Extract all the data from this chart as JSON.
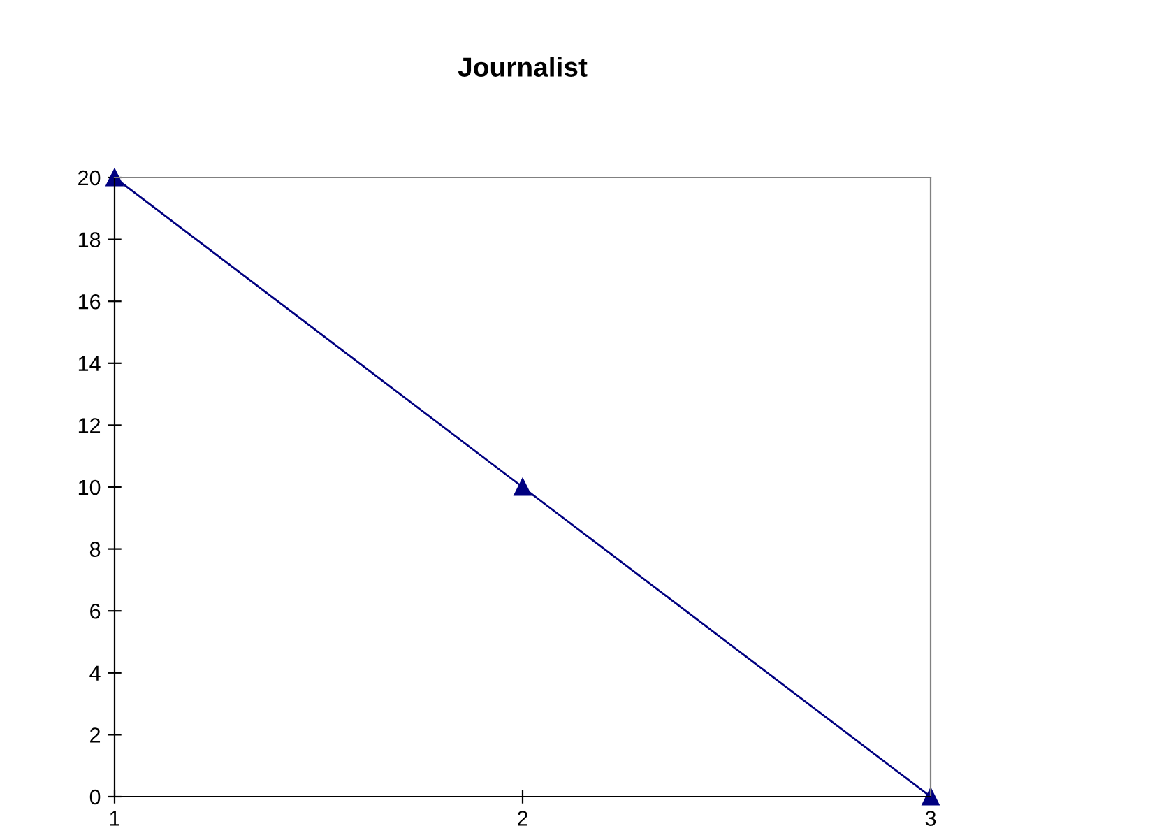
{
  "chart_data": {
    "type": "line",
    "title": "Journalist",
    "x": [
      1,
      2,
      3
    ],
    "series": [
      {
        "color": "#000080",
        "values": [
          20,
          10,
          0
        ]
      }
    ],
    "xlim": [
      1,
      3
    ],
    "xticks": [
      1,
      2,
      3
    ],
    "ylim": [
      0,
      20
    ],
    "yticks": [
      0,
      2,
      4,
      6,
      8,
      10,
      12,
      14,
      16,
      18,
      20
    ],
    "marker": "triangle",
    "line_style": "solid",
    "grid": false,
    "legend": false
  }
}
